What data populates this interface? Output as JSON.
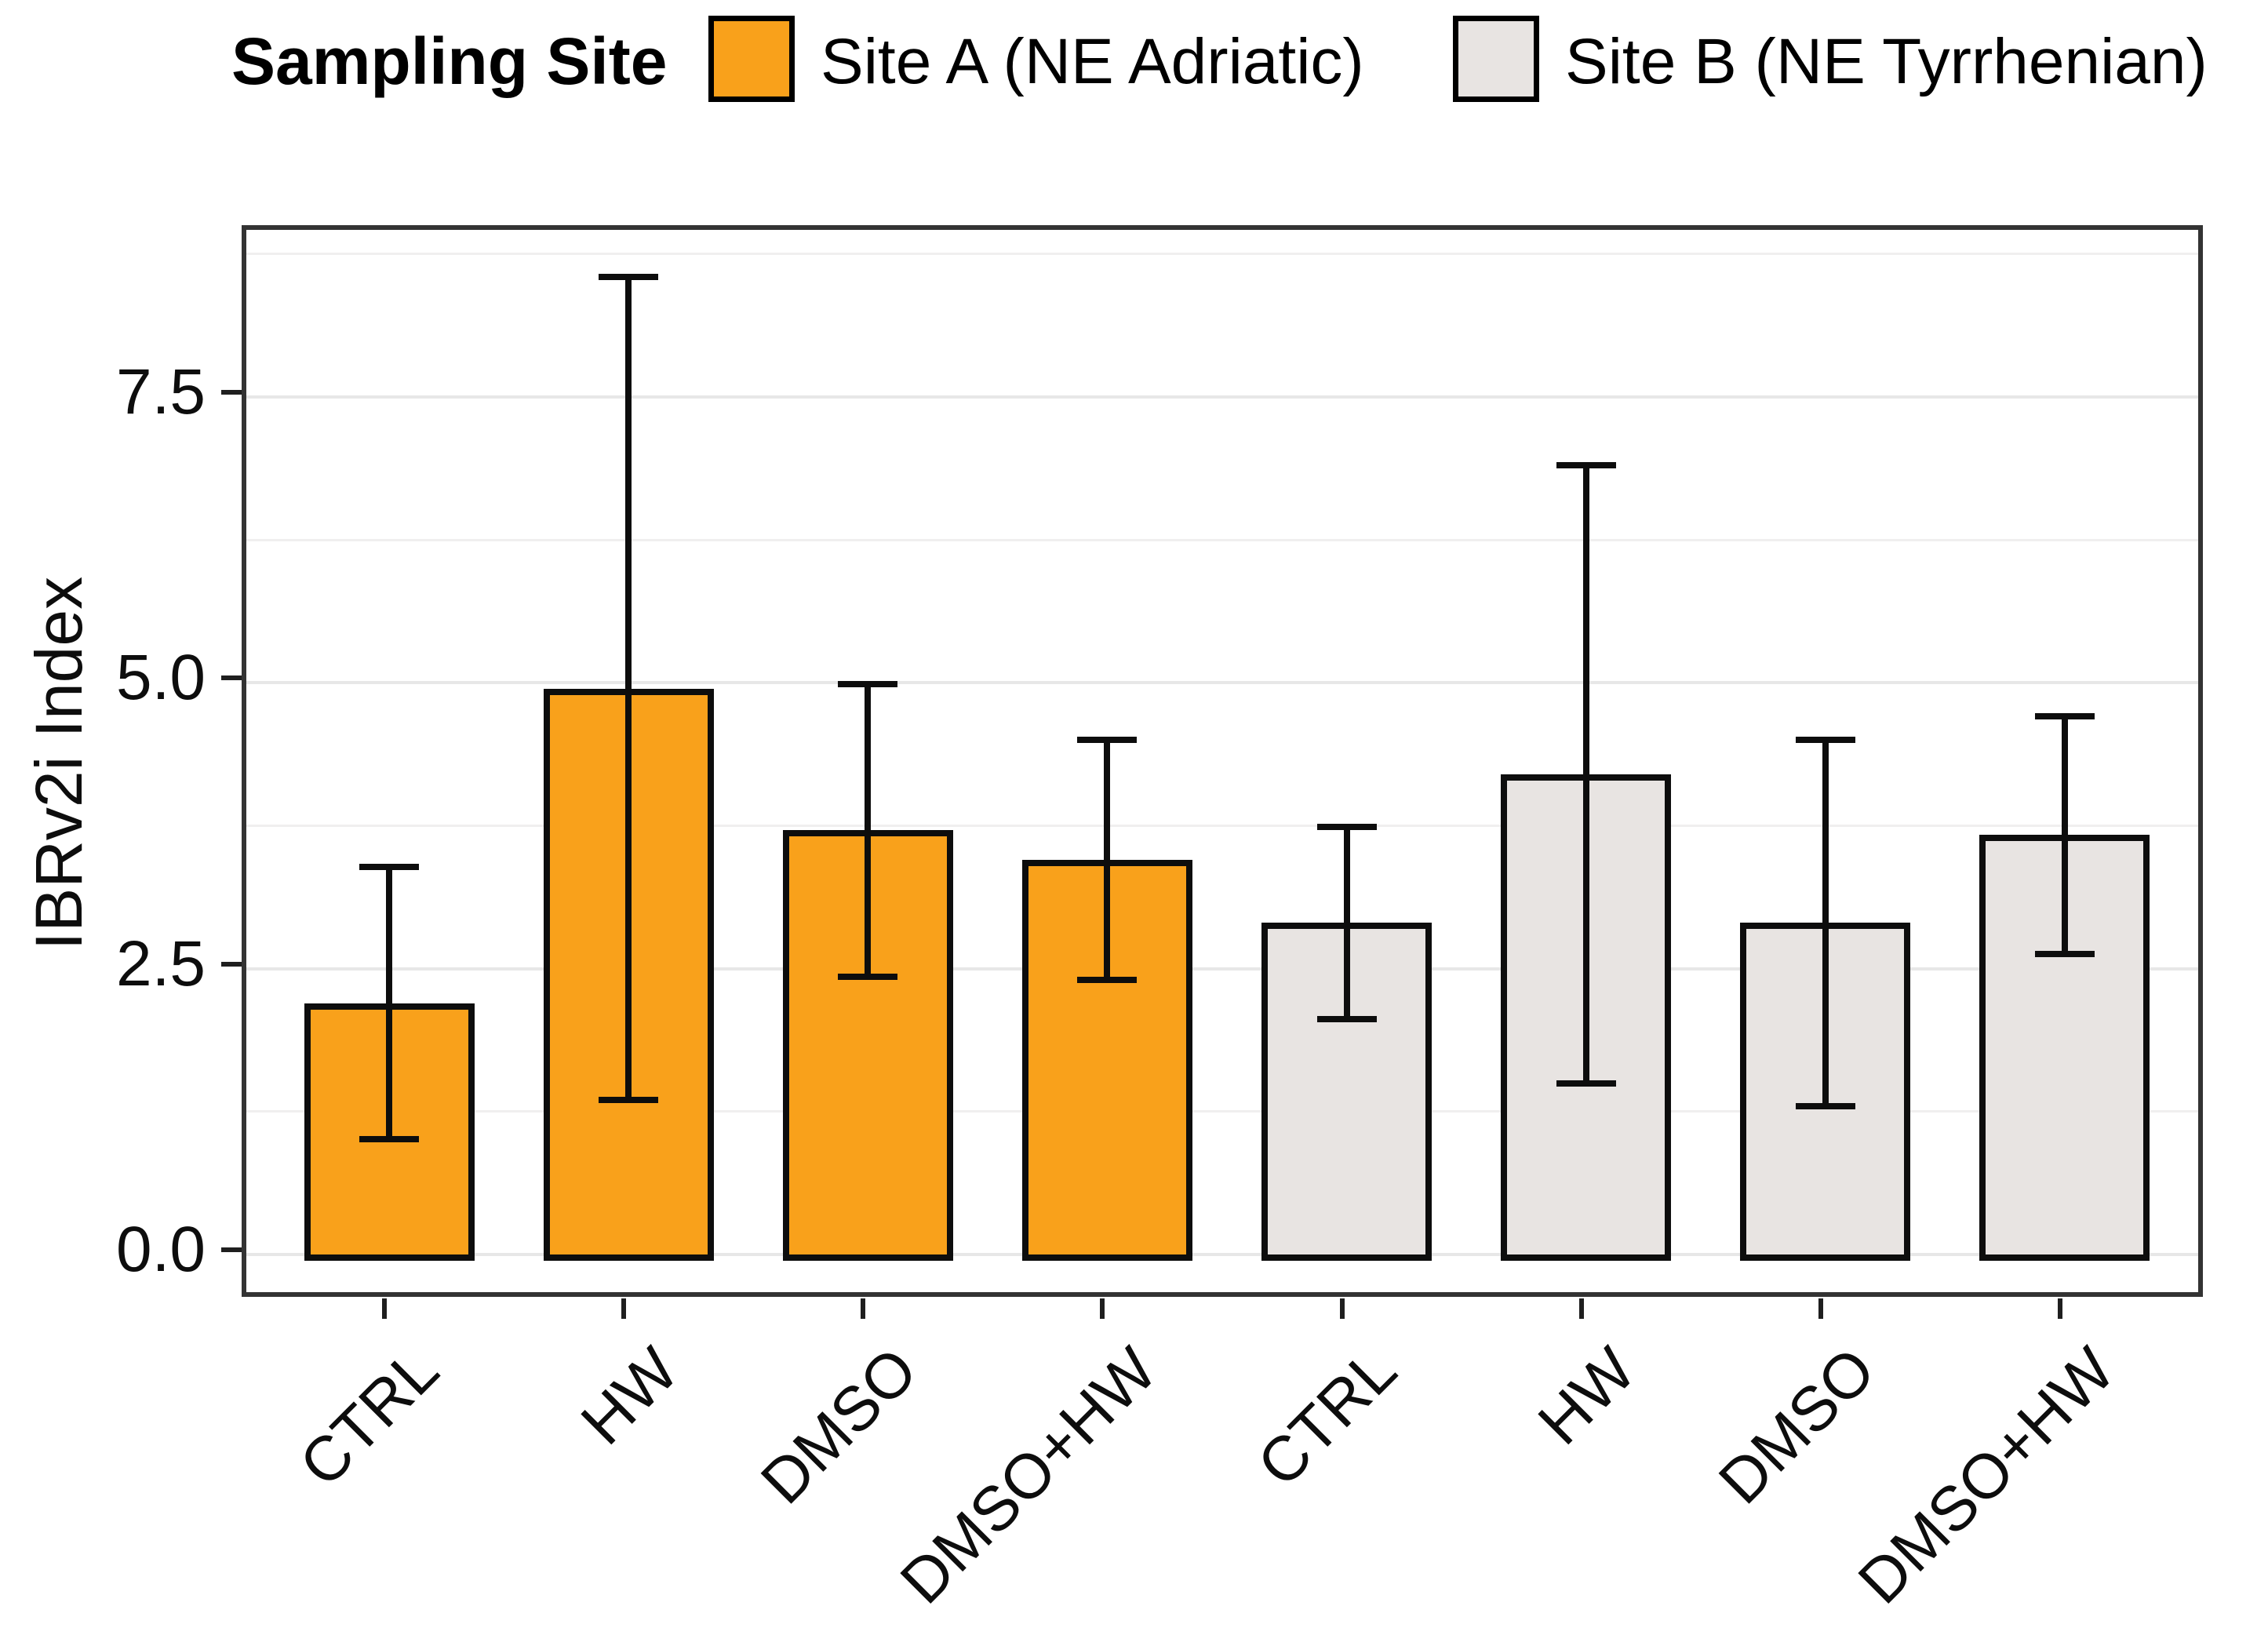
{
  "legend": {
    "title": "Sampling Site",
    "entries": [
      {
        "label": "Site A (NE Adriatic)",
        "color": "#F9A11B"
      },
      {
        "label": "Site B (NE Tyrrhenian)",
        "color": "#E8E4E2"
      }
    ]
  },
  "chart_data": {
    "type": "bar",
    "title": "",
    "xlabel": "",
    "ylabel": "IBRv2i Index",
    "ylim": [
      -0.41,
      8.96
    ],
    "yticks": [
      0.0,
      2.5,
      5.0,
      7.5
    ],
    "ytick_labels": [
      "0.0",
      "2.5",
      "5.0",
      "7.5"
    ],
    "minor_gridlines": [
      1.25,
      3.75,
      6.25,
      8.75
    ],
    "grid": true,
    "legend_position": "top",
    "categories": [
      "CTRL",
      "HW",
      "DMSO",
      "DMSO+HW",
      "CTRL",
      "HW",
      "DMSO",
      "DMSO+HW"
    ],
    "bars": [
      {
        "category": "CTRL",
        "group": "Site A (NE Adriatic)",
        "value": 2.2,
        "error": 1.19
      },
      {
        "category": "HW",
        "group": "Site A (NE Adriatic)",
        "value": 4.95,
        "error": 3.6
      },
      {
        "category": "DMSO",
        "group": "Site A (NE Adriatic)",
        "value": 3.71,
        "error": 1.28
      },
      {
        "category": "DMSO+HW",
        "group": "Site A (NE Adriatic)",
        "value": 3.45,
        "error": 1.05
      },
      {
        "category": "CTRL",
        "group": "Site B (NE Tyrrhenian)",
        "value": 2.9,
        "error": 0.84
      },
      {
        "category": "HW",
        "group": "Site B (NE Tyrrhenian)",
        "value": 4.2,
        "error": 2.7
      },
      {
        "category": "DMSO",
        "group": "Site B (NE Tyrrhenian)",
        "value": 2.9,
        "error": 1.6
      },
      {
        "category": "DMSO+HW",
        "group": "Site B (NE Tyrrhenian)",
        "value": 3.67,
        "error": 1.04
      }
    ],
    "colors": {
      "Site A (NE Adriatic)": "#F9A11B",
      "Site B (NE Tyrrhenian)": "#E8E4E2"
    }
  }
}
